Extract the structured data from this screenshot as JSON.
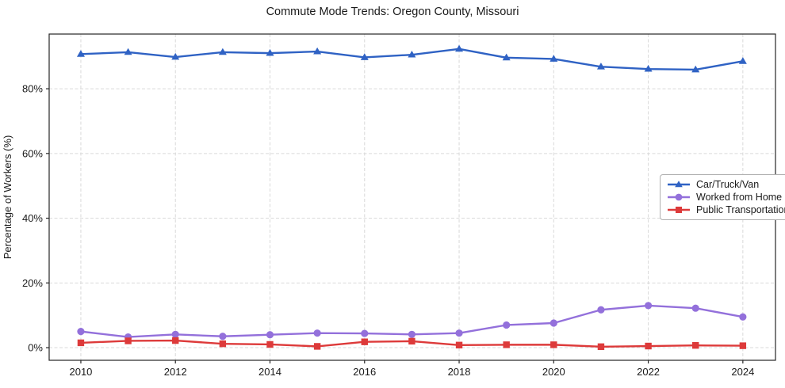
{
  "chart_data": {
    "type": "line",
    "title": "Commute Mode Trends: Oregon County, Missouri",
    "xlabel": "",
    "ylabel": "Percentage of Workers (%)",
    "x": [
      2010,
      2011,
      2012,
      2013,
      2014,
      2015,
      2016,
      2017,
      2018,
      2019,
      2020,
      2021,
      2022,
      2023,
      2024
    ],
    "xticks": [
      2010,
      2012,
      2014,
      2016,
      2018,
      2020,
      2022,
      2024
    ],
    "xtick_labels": [
      "2010",
      "2012",
      "2014",
      "2016",
      "2018",
      "2020",
      "2022",
      "2024"
    ],
    "yticks": [
      0,
      20,
      40,
      60,
      80
    ],
    "ytick_labels": [
      "0%",
      "20%",
      "40%",
      "60%",
      "80%"
    ],
    "xlim": [
      2009.33,
      2024.69
    ],
    "ylim": [
      -3.9,
      96.9
    ],
    "grid": true,
    "legend_position": "center-right",
    "series": [
      {
        "name": "Car/Truck/Van",
        "color": "#2f62c4",
        "marker": "triangle",
        "values": [
          90.7,
          91.3,
          89.8,
          91.3,
          91.0,
          91.5,
          89.7,
          90.5,
          92.3,
          89.6,
          89.2,
          86.8,
          86.1,
          85.9,
          88.5
        ]
      },
      {
        "name": "Worked from Home",
        "color": "#9370db",
        "marker": "circle",
        "values": [
          5.0,
          3.3,
          4.1,
          3.5,
          4.0,
          4.5,
          4.4,
          4.1,
          4.5,
          7.0,
          7.6,
          11.7,
          13.0,
          12.2,
          9.5
        ]
      },
      {
        "name": "Public Transportation",
        "color": "#dd3a3a",
        "marker": "square",
        "values": [
          1.5,
          2.1,
          2.2,
          1.2,
          1.0,
          0.4,
          1.8,
          2.0,
          0.8,
          0.9,
          0.9,
          0.3,
          0.5,
          0.7,
          0.6
        ]
      }
    ]
  }
}
